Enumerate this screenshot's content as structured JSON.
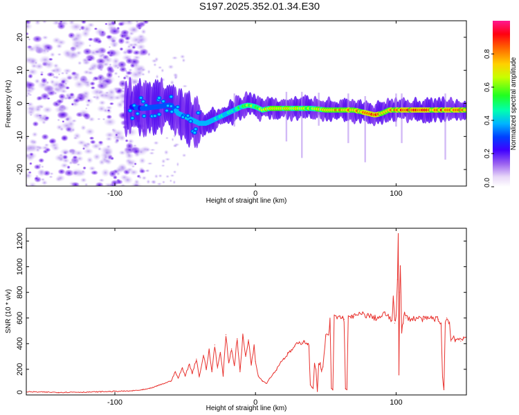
{
  "title": "S197.2025.352.01.34.E30",
  "chart_data": [
    {
      "type": "heatmap",
      "xlabel": "Height of straight line (km)",
      "ylabel": "Frequency (Hz)",
      "xlim": [
        -163,
        150
      ],
      "ylim": [
        -25,
        25
      ],
      "xticks": [
        -100,
        0,
        100
      ],
      "yticks": [
        -20,
        -10,
        0,
        10,
        20
      ],
      "colorbar": {
        "label": "Normalized spectral amplitude",
        "range": [
          0.0,
          1.0
        ],
        "ticks": [
          "0.0",
          "0.2",
          "0.4",
          "0.6",
          "0.8"
        ],
        "colormap": [
          "#ffffff",
          "#b48cf0",
          "#5a00ff",
          "#0000ff",
          "#00c8ff",
          "#00ff7f",
          "#40ff00",
          "#ffff00",
          "#ff8000",
          "#ff0000",
          "#ff1080"
        ]
      },
      "ridge": {
        "x": [
          -90,
          -80,
          -70,
          -60,
          -55,
          -50,
          -45,
          -40,
          -35,
          -30,
          -25,
          -20,
          -15,
          -10,
          -5,
          0,
          5,
          10,
          20,
          30,
          40,
          50,
          60,
          70,
          80,
          85,
          90,
          95,
          100,
          110,
          120,
          130,
          140,
          148
        ],
        "f": [
          -1,
          -1.5,
          -1,
          -0.5,
          -3,
          -4,
          -5,
          -6,
          -6,
          -5,
          -4,
          -3,
          -2,
          -1,
          -0.5,
          -1,
          -2,
          -1.5,
          -1.5,
          -1.5,
          -1.5,
          -2,
          -2,
          -2,
          -3,
          -3.5,
          -3,
          -2,
          -2,
          -2,
          -2,
          -2,
          -2,
          -2
        ],
        "amp": [
          0.25,
          0.3,
          0.35,
          0.4,
          0.5,
          0.55,
          0.5,
          0.45,
          0.45,
          0.5,
          0.55,
          0.5,
          0.55,
          0.6,
          0.7,
          0.65,
          0.75,
          0.8,
          0.8,
          0.75,
          0.7,
          0.8,
          0.85,
          0.9,
          0.9,
          0.95,
          0.9,
          0.85,
          0.9,
          0.95,
          0.95,
          0.9,
          0.9,
          0.85
        ]
      }
    },
    {
      "type": "line",
      "xlabel": "Height of straight line (km)",
      "ylabel": "SNR (10 * v/v)",
      "xlim": [
        -163,
        150
      ],
      "ylim": [
        0,
        1300
      ],
      "xticks": [
        -100,
        0,
        100
      ],
      "yticks": [
        0,
        200,
        400,
        600,
        800,
        1000,
        1200
      ],
      "color": "#e8302c",
      "series": [
        {
          "name": "SNR",
          "x": [
            -163,
            -150,
            -140,
            -130,
            -120,
            -110,
            -100,
            -90,
            -80,
            -75,
            -70,
            -65,
            -60,
            -57,
            -55,
            -52,
            -50,
            -47,
            -45,
            -42,
            -40,
            -37,
            -35,
            -33,
            -31,
            -29,
            -27,
            -25,
            -23,
            -21,
            -19,
            -17,
            -15,
            -13,
            -11,
            -9,
            -7,
            -5,
            -3,
            -1,
            0,
            2,
            5,
            8,
            10,
            13,
            15,
            18,
            20,
            23,
            25,
            28,
            30,
            33,
            35,
            37,
            38,
            39,
            40,
            41,
            42,
            43,
            44,
            45,
            46,
            47,
            48,
            50,
            52,
            53,
            54,
            55,
            56,
            58,
            60,
            62,
            63,
            64,
            65,
            66,
            68,
            70,
            75,
            80,
            85,
            90,
            92,
            95,
            97,
            98,
            99,
            100,
            101,
            101.5,
            102,
            102.5,
            103,
            104,
            105,
            106,
            107,
            108,
            110,
            115,
            120,
            125,
            130,
            132,
            133,
            134,
            135,
            136,
            137,
            138,
            139,
            140,
            141,
            142,
            144,
            146,
            148,
            150
          ],
          "y": [
            25,
            22,
            20,
            22,
            22,
            25,
            28,
            30,
            40,
            50,
            70,
            90,
            110,
            180,
            130,
            210,
            150,
            240,
            170,
            280,
            140,
            310,
            200,
            350,
            180,
            390,
            210,
            330,
            150,
            470,
            250,
            360,
            230,
            440,
            180,
            460,
            300,
            430,
            240,
            380,
            260,
            150,
            110,
            90,
            130,
            170,
            200,
            260,
            280,
            320,
            340,
            380,
            400,
            410,
            420,
            400,
            380,
            80,
            60,
            50,
            240,
            200,
            30,
            240,
            250,
            180,
            220,
            460,
            470,
            580,
            50,
            40,
            620,
            600,
            610,
            600,
            590,
            50,
            40,
            600,
            620,
            610,
            630,
            620,
            600,
            610,
            640,
            600,
            580,
            750,
            560,
            620,
            900,
            1300,
            160,
            800,
            1000,
            500,
            560,
            640,
            600,
            610,
            590,
            600,
            590,
            600,
            590,
            560,
            140,
            40,
            560,
            600,
            580,
            570,
            420,
            440,
            460,
            430,
            440,
            420,
            440,
            450
          ]
        }
      ]
    }
  ]
}
